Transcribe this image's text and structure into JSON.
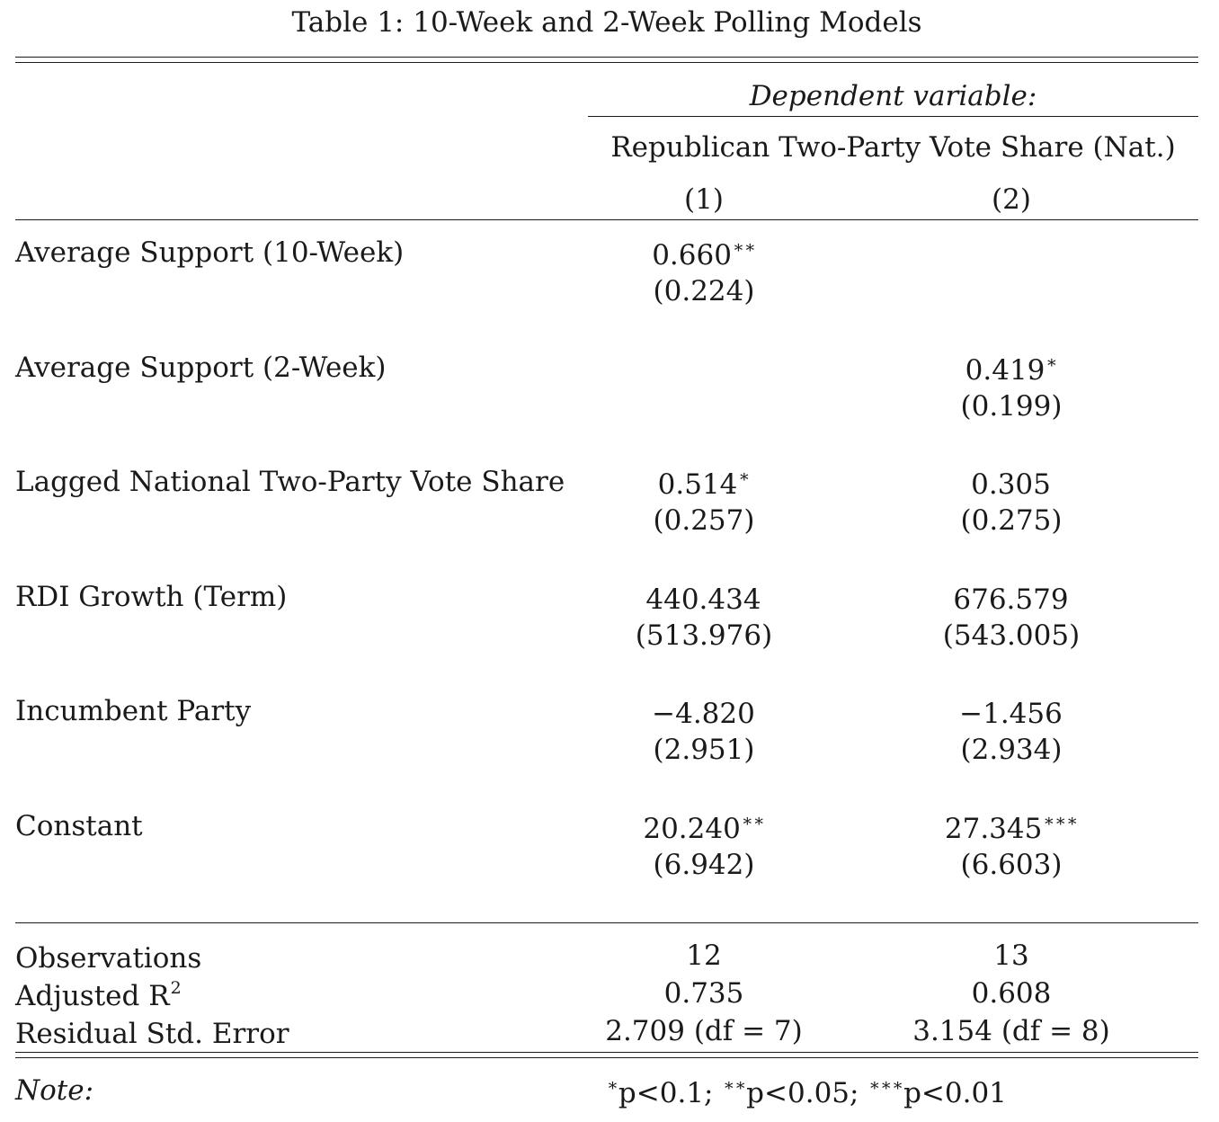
{
  "title": "Table 1: 10-Week and 2-Week Polling Models",
  "header": {
    "dependent_label": "Dependent variable:",
    "dependent_name": "Republican Two-Party Vote Share (Nat.)",
    "columns": [
      "(1)",
      "(2)"
    ]
  },
  "rows": [
    {
      "label": "Average Support (10-Week)",
      "c1": "0.660",
      "c1_stars": "∗∗",
      "c1_se": "(0.224)",
      "c2": "",
      "c2_stars": "",
      "c2_se": ""
    },
    {
      "label": "Average Support (2-Week)",
      "c1": "",
      "c1_stars": "",
      "c1_se": "",
      "c2": "0.419",
      "c2_stars": "∗",
      "c2_se": "(0.199)"
    },
    {
      "label": "Lagged National Two-Party Vote Share",
      "c1": "0.514",
      "c1_stars": "∗",
      "c1_se": "(0.257)",
      "c2": "0.305",
      "c2_stars": "",
      "c2_se": "(0.275)"
    },
    {
      "label": "RDI Growth (Term)",
      "c1": "440.434",
      "c1_stars": "",
      "c1_se": "(513.976)",
      "c2": "676.579",
      "c2_stars": "",
      "c2_se": "(543.005)"
    },
    {
      "label": "Incumbent Party",
      "c1": "−4.820",
      "c1_stars": "",
      "c1_se": "(2.951)",
      "c2": "−1.456",
      "c2_stars": "",
      "c2_se": "(2.934)"
    },
    {
      "label": "Constant",
      "c1": "20.240",
      "c1_stars": "∗∗",
      "c1_se": "(6.942)",
      "c2": "27.345",
      "c2_stars": "∗∗∗",
      "c2_se": "(6.603)"
    }
  ],
  "stats": [
    {
      "label": "Observations",
      "label_sup": "",
      "c1": "12",
      "c2": "13"
    },
    {
      "label": "Adjusted R",
      "label_sup": "2",
      "c1": "0.735",
      "c2": "0.608"
    },
    {
      "label": "Residual Std. Error",
      "label_sup": "",
      "c1": "2.709 (df = 7)",
      "c2": "3.154 (df = 8)"
    }
  ],
  "note": {
    "label": "Note:",
    "s1": "∗",
    "t1": "p<0.1; ",
    "s2": "∗∗",
    "t2": "p<0.05; ",
    "s3": "∗∗∗",
    "t3": "p<0.01"
  }
}
